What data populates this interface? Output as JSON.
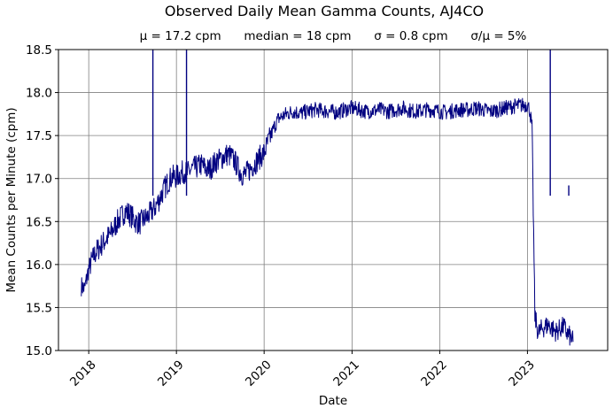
{
  "chart_data": {
    "type": "line",
    "title": "Observed Daily Mean Gamma Counts, AJ4CO",
    "subtitle": "μ = 17.2 cpm      median = 18 cpm      σ = 0.8 cpm      σ/μ = 5%",
    "xlabel": "Date",
    "ylabel": "Mean Counts per Minute (cpm)",
    "xlim": [
      "2017-08-28",
      "2023-12-01"
    ],
    "ylim": [
      15.0,
      18.5
    ],
    "x_ticks": [
      "2018",
      "2019",
      "2020",
      "2021",
      "2022",
      "2023"
    ],
    "y_ticks": [
      "15.0",
      "15.5",
      "16.0",
      "16.5",
      "17.0",
      "17.5",
      "18.0",
      "18.5"
    ],
    "grid": true,
    "line_color": "#000080",
    "series": [
      {
        "x": [
          "2017-12-01",
          "2017-12-15",
          "2018-01-01",
          "2018-01-15",
          "2018-02-01",
          "2018-02-15",
          "2018-03-01",
          "2018-03-15",
          "2018-04-01",
          "2018-04-15",
          "2018-05-01",
          "2018-05-15",
          "2018-06-01",
          "2018-06-15",
          "2018-07-01",
          "2018-07-15",
          "2018-08-01",
          "2018-08-15",
          "2018-09-01",
          "2018-09-15",
          "2018-10-01",
          "2018-10-15",
          "2018-11-01",
          "2018-11-15",
          "2018-12-01",
          "2018-12-15",
          "2019-01-01",
          "2019-01-15",
          "2019-02-01",
          "2019-02-15",
          "2019-03-01",
          "2019-03-15",
          "2019-04-01",
          "2019-04-15",
          "2019-05-01",
          "2019-05-15",
          "2019-06-01",
          "2019-06-15",
          "2019-07-01",
          "2019-07-15",
          "2019-08-01",
          "2019-08-15",
          "2019-09-01",
          "2019-09-15",
          "2019-10-01",
          "2019-10-15",
          "2019-11-01",
          "2019-11-15",
          "2019-12-01",
          "2019-12-15",
          "2020-01-01",
          "2020-01-15",
          "2020-02-01",
          "2020-02-15",
          "2020-03-01",
          "2020-03-15",
          "2020-04-01",
          "2020-05-01",
          "2020-06-01",
          "2020-07-01",
          "2020-08-01",
          "2020-09-01",
          "2020-10-01",
          "2020-11-01",
          "2020-12-01",
          "2021-01-01",
          "2021-02-01",
          "2021-03-01",
          "2021-04-01",
          "2021-05-01",
          "2021-06-01",
          "2021-07-01",
          "2021-08-01",
          "2021-09-01",
          "2021-10-01",
          "2021-11-01",
          "2021-12-01",
          "2022-01-01",
          "2022-02-01",
          "2022-03-01",
          "2022-04-01",
          "2022-05-01",
          "2022-06-01",
          "2022-07-01",
          "2022-08-01",
          "2022-09-01",
          "2022-10-01",
          "2022-11-01",
          "2022-12-01",
          "2023-01-01",
          "2023-01-10",
          "2023-01-20",
          "2023-02-01",
          "2023-02-15",
          "2023-03-01",
          "2023-03-15",
          "2023-04-01",
          "2023-04-15",
          "2023-05-01",
          "2023-05-15",
          "2023-06-01",
          "2023-06-15",
          "2023-07-01",
          "2023-07-10"
        ],
        "y": [
          15.75,
          15.72,
          15.95,
          16.05,
          16.15,
          16.2,
          16.25,
          16.3,
          16.35,
          16.42,
          16.5,
          16.55,
          16.62,
          16.6,
          16.55,
          16.5,
          16.48,
          16.52,
          16.55,
          16.6,
          16.65,
          16.72,
          16.82,
          16.9,
          16.98,
          17.02,
          17.02,
          17.05,
          17.08,
          17.06,
          17.1,
          17.12,
          17.14,
          17.16,
          17.12,
          17.1,
          17.15,
          17.2,
          17.22,
          17.25,
          17.28,
          17.26,
          17.2,
          17.12,
          17.05,
          17.05,
          17.1,
          17.15,
          17.2,
          17.25,
          17.3,
          17.4,
          17.52,
          17.62,
          17.7,
          17.72,
          17.75,
          17.78,
          17.76,
          17.78,
          17.8,
          17.79,
          17.78,
          17.77,
          17.8,
          17.82,
          17.8,
          17.78,
          17.79,
          17.8,
          17.78,
          17.8,
          17.82,
          17.79,
          17.78,
          17.8,
          17.8,
          17.78,
          17.77,
          17.79,
          17.8,
          17.8,
          17.82,
          17.8,
          17.78,
          17.8,
          17.82,
          17.84,
          17.85,
          17.86,
          17.8,
          17.6,
          15.4,
          15.2,
          15.25,
          15.28,
          15.3,
          15.25,
          15.22,
          15.25,
          15.28,
          15.2,
          15.15,
          15.1
        ]
      }
    ],
    "spikes": [
      {
        "x": "2018-09-25",
        "y": 18.5
      },
      {
        "x": "2019-02-12",
        "y": 18.5
      },
      {
        "x": "2023-04-06",
        "y": 18.5
      },
      {
        "x": "2023-06-22",
        "y": 16.92
      }
    ]
  }
}
